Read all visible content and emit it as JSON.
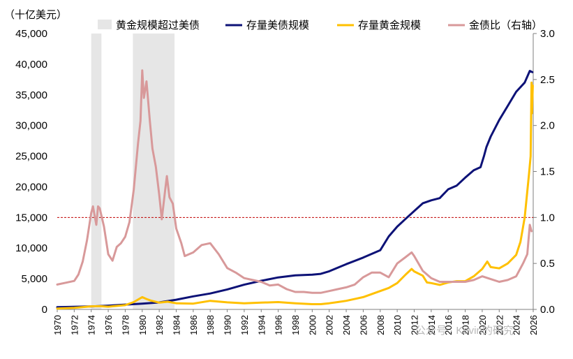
{
  "chart_data": {
    "type": "line",
    "title": "",
    "unit_label": "（十亿美元）",
    "x": [
      1970,
      2026
    ],
    "xticks": [
      "1970",
      "1972",
      "1974",
      "1976",
      "1978",
      "1980",
      "1982",
      "1984",
      "1986",
      "1988",
      "1990",
      "1992",
      "1994",
      "1996",
      "1998",
      "2000",
      "2002",
      "2004",
      "2006",
      "2008",
      "2010",
      "2012",
      "2014",
      "2016",
      "2018",
      "2020",
      "2022",
      "2024",
      "2026"
    ],
    "ylim_left": [
      0,
      45000
    ],
    "yticks_left": [
      "0",
      "5,000",
      "10,000",
      "15,000",
      "20,000",
      "25,000",
      "30,000",
      "35,000",
      "40,000",
      "45,000"
    ],
    "ylim_right": [
      0,
      3.0
    ],
    "yticks_right": [
      "0.0",
      "0.5",
      "1.0",
      "1.5",
      "2.0",
      "2.5",
      "3.0"
    ],
    "reference_line": {
      "axis": "right",
      "value": 1.0,
      "color": "#c00000",
      "style": "dashed"
    },
    "shaded_periods": [
      {
        "name": "黄金规模超过美债",
        "start": 1974.0,
        "end": 1975.2
      },
      {
        "name": "黄金规模超过美债",
        "start": 1978.9,
        "end": 1983.8
      }
    ],
    "legend_position": "top",
    "series": [
      {
        "name": "存量美债规模",
        "color": "#0d1277",
        "axis": "left",
        "points": [
          [
            1970,
            380
          ],
          [
            1972,
            430
          ],
          [
            1974,
            490
          ],
          [
            1976,
            620
          ],
          [
            1978,
            790
          ],
          [
            1980,
            930
          ],
          [
            1982,
            1140
          ],
          [
            1984,
            1580
          ],
          [
            1986,
            2130
          ],
          [
            1988,
            2600
          ],
          [
            1990,
            3260
          ],
          [
            1992,
            4030
          ],
          [
            1994,
            4670
          ],
          [
            1996,
            5220
          ],
          [
            1998,
            5550
          ],
          [
            2000,
            5660
          ],
          [
            2001,
            5800
          ],
          [
            2002,
            6220
          ],
          [
            2004,
            7380
          ],
          [
            2006,
            8450
          ],
          [
            2008,
            9650
          ],
          [
            2009,
            11900
          ],
          [
            2010,
            13500
          ],
          [
            2011,
            14790
          ],
          [
            2012,
            16050
          ],
          [
            2013,
            17300
          ],
          [
            2014,
            17800
          ],
          [
            2015,
            18150
          ],
          [
            2016,
            19600
          ],
          [
            2017,
            20200
          ],
          [
            2018,
            21500
          ],
          [
            2019,
            22700
          ],
          [
            2019.8,
            23200
          ],
          [
            2020.2,
            25000
          ],
          [
            2020.5,
            26500
          ],
          [
            2021,
            28200
          ],
          [
            2022,
            30900
          ],
          [
            2023,
            33200
          ],
          [
            2024,
            35500
          ],
          [
            2025,
            37000
          ],
          [
            2025.6,
            38900
          ],
          [
            2025.9,
            38700
          ]
        ]
      },
      {
        "name": "存量黄金规模",
        "color": "#ffc000",
        "axis": "left",
        "points": [
          [
            1970,
            150
          ],
          [
            1972,
            250
          ],
          [
            1974,
            500
          ],
          [
            1975,
            520
          ],
          [
            1976,
            450
          ],
          [
            1978,
            700
          ],
          [
            1979,
            1200
          ],
          [
            1980,
            2000
          ],
          [
            1980.5,
            1700
          ],
          [
            1981,
            1450
          ],
          [
            1982,
            1100
          ],
          [
            1983,
            1250
          ],
          [
            1984,
            1000
          ],
          [
            1986,
            950
          ],
          [
            1988,
            1400
          ],
          [
            1990,
            1150
          ],
          [
            1992,
            1000
          ],
          [
            1994,
            1100
          ],
          [
            1996,
            1200
          ],
          [
            1998,
            1000
          ],
          [
            2000,
            850
          ],
          [
            2001,
            850
          ],
          [
            2002,
            1000
          ],
          [
            2003,
            1200
          ],
          [
            2004,
            1400
          ],
          [
            2006,
            2000
          ],
          [
            2008,
            3000
          ],
          [
            2009,
            3500
          ],
          [
            2010,
            4300
          ],
          [
            2011,
            5700
          ],
          [
            2011.7,
            6600
          ],
          [
            2012,
            6200
          ],
          [
            2013,
            5500
          ],
          [
            2013.5,
            4400
          ],
          [
            2014,
            4300
          ],
          [
            2015,
            4000
          ],
          [
            2016,
            4400
          ],
          [
            2017,
            4600
          ],
          [
            2018,
            4600
          ],
          [
            2019,
            5400
          ],
          [
            2020,
            6600
          ],
          [
            2020.6,
            7800
          ],
          [
            2021,
            6900
          ],
          [
            2022,
            6700
          ],
          [
            2023,
            7500
          ],
          [
            2024,
            8900
          ],
          [
            2024.5,
            11000
          ],
          [
            2025,
            15000
          ],
          [
            2025.5,
            22000
          ],
          [
            2025.7,
            25000
          ],
          [
            2025.8,
            37000
          ],
          [
            2025.85,
            32000
          ],
          [
            2025.95,
            36500
          ]
        ]
      },
      {
        "name": "金债比（右轴）",
        "color": "#d8999a",
        "axis": "right",
        "points": [
          [
            1970,
            0.27
          ],
          [
            1971,
            0.29
          ],
          [
            1972,
            0.31
          ],
          [
            1972.5,
            0.38
          ],
          [
            1973,
            0.52
          ],
          [
            1973.5,
            0.75
          ],
          [
            1974,
            1.05
          ],
          [
            1974.2,
            1.12
          ],
          [
            1974.6,
            0.92
          ],
          [
            1974.8,
            1.12
          ],
          [
            1975,
            1.1
          ],
          [
            1975.5,
            0.9
          ],
          [
            1976,
            0.6
          ],
          [
            1976.5,
            0.53
          ],
          [
            1977,
            0.68
          ],
          [
            1977.5,
            0.72
          ],
          [
            1978,
            0.79
          ],
          [
            1978.5,
            0.95
          ],
          [
            1979,
            1.3
          ],
          [
            1979.5,
            1.8
          ],
          [
            1979.8,
            2.05
          ],
          [
            1980,
            2.6
          ],
          [
            1980.2,
            2.3
          ],
          [
            1980.5,
            2.48
          ],
          [
            1980.9,
            2.05
          ],
          [
            1981.2,
            1.75
          ],
          [
            1981.6,
            1.55
          ],
          [
            1982,
            1.25
          ],
          [
            1982.3,
            0.98
          ],
          [
            1982.7,
            1.3
          ],
          [
            1982.9,
            1.45
          ],
          [
            1983.2,
            1.22
          ],
          [
            1983.6,
            1.15
          ],
          [
            1984,
            0.88
          ],
          [
            1984.6,
            0.72
          ],
          [
            1985,
            0.58
          ],
          [
            1986,
            0.62
          ],
          [
            1987,
            0.7
          ],
          [
            1988,
            0.72
          ],
          [
            1989,
            0.6
          ],
          [
            1990,
            0.45
          ],
          [
            1991,
            0.4
          ],
          [
            1992,
            0.34
          ],
          [
            1993,
            0.32
          ],
          [
            1994,
            0.3
          ],
          [
            1995,
            0.26
          ],
          [
            1996,
            0.27
          ],
          [
            1997,
            0.22
          ],
          [
            1998,
            0.19
          ],
          [
            1999,
            0.19
          ],
          [
            2000,
            0.18
          ],
          [
            2001,
            0.18
          ],
          [
            2002,
            0.2
          ],
          [
            2003,
            0.22
          ],
          [
            2004,
            0.24
          ],
          [
            2005,
            0.27
          ],
          [
            2006,
            0.35
          ],
          [
            2007,
            0.4
          ],
          [
            2008,
            0.4
          ],
          [
            2009,
            0.35
          ],
          [
            2010,
            0.5
          ],
          [
            2011,
            0.57
          ],
          [
            2011.7,
            0.62
          ],
          [
            2012,
            0.58
          ],
          [
            2013,
            0.42
          ],
          [
            2014,
            0.34
          ],
          [
            2015,
            0.3
          ],
          [
            2016,
            0.3
          ],
          [
            2017,
            0.3
          ],
          [
            2018,
            0.3
          ],
          [
            2019,
            0.32
          ],
          [
            2020,
            0.36
          ],
          [
            2021,
            0.33
          ],
          [
            2022,
            0.3
          ],
          [
            2023,
            0.32
          ],
          [
            2024,
            0.36
          ],
          [
            2024.8,
            0.5
          ],
          [
            2025.3,
            0.6
          ],
          [
            2025.6,
            0.92
          ],
          [
            2025.8,
            0.85
          ]
        ]
      }
    ]
  },
  "watermark": "公众号 · Kevin的研究"
}
